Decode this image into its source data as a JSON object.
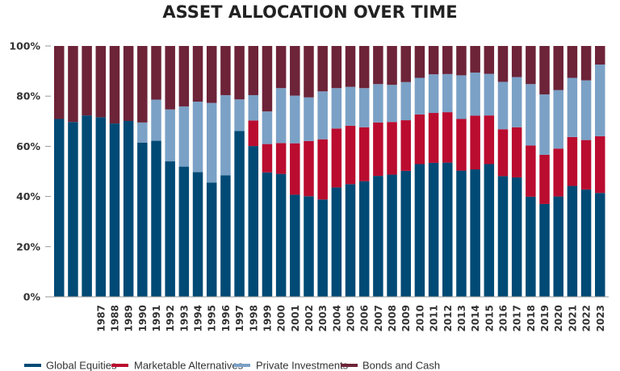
{
  "chart_data": {
    "type": "bar",
    "stacked": true,
    "title": "ASSET ALLOCATION OVER TIME",
    "xlabel": "",
    "ylabel": "",
    "ylim": [
      0,
      100
    ],
    "yticks": [
      "0%",
      "20%",
      "40%",
      "60%",
      "80%",
      "100%"
    ],
    "categories": [
      "",
      "",
      "",
      "1987",
      "1988",
      "1989",
      "1990",
      "1991",
      "1992",
      "1993",
      "1994",
      "1995",
      "1996",
      "1997",
      "1998",
      "1999",
      "2000",
      "2001",
      "2002",
      "2003",
      "2004",
      "2005",
      "2006",
      "2007",
      "2008",
      "2009",
      "2010",
      "2011",
      "2012",
      "2013",
      "2014",
      "2015",
      "2016",
      "2017",
      "2018",
      "2019",
      "2020",
      "2021",
      "2022",
      "2023"
    ],
    "series": [
      {
        "name": "Global Equities",
        "color": "#004a75",
        "values": [
          70.9,
          69.7,
          72.3,
          71.6,
          69.1,
          70.1,
          61.5,
          62.2,
          54.0,
          51.9,
          49.7,
          45.5,
          48.4,
          66.1,
          60.1,
          49.6,
          49.0,
          40.7,
          40.1,
          38.8,
          43.6,
          44.9,
          46.1,
          48.2,
          48.7,
          50.2,
          52.9,
          53.4,
          53.5,
          50.3,
          50.8,
          52.9,
          48.1,
          47.6,
          39.9,
          37.0,
          40.0,
          44.2,
          42.8,
          41.4
        ]
      },
      {
        "name": "Marketable Alternatives",
        "color": "#ba0c2f",
        "values": [
          0,
          0,
          0,
          0,
          0,
          0,
          0,
          0,
          0,
          0,
          0,
          0,
          0,
          0,
          10.2,
          11.3,
          12.3,
          20.5,
          22.0,
          24.0,
          23.5,
          23.3,
          21.5,
          21.3,
          21.0,
          20.2,
          19.8,
          19.9,
          20.1,
          20.6,
          21.4,
          19.4,
          18.7,
          20.0,
          20.4,
          19.6,
          19.1,
          19.5,
          19.7,
          22.6
        ]
      },
      {
        "name": "Private Investments",
        "color": "#7ba1c6",
        "values": [
          0,
          0,
          0,
          0,
          0,
          0,
          8.0,
          16.4,
          20.7,
          24.0,
          28.1,
          31.8,
          32.0,
          12.6,
          10.1,
          13.0,
          21.9,
          19.0,
          17.4,
          19.1,
          16.1,
          15.5,
          15.6,
          15.3,
          14.8,
          15.2,
          14.6,
          15.4,
          15.2,
          17.4,
          17.2,
          16.6,
          18.9,
          20.0,
          24.5,
          24.1,
          23.3,
          23.6,
          23.8,
          28.6
        ]
      },
      {
        "name": "Bonds and Cash",
        "color": "#6d2338",
        "values": [
          29.1,
          30.3,
          27.7,
          28.4,
          30.9,
          29.9,
          30.5,
          21.4,
          25.3,
          24.1,
          22.2,
          22.7,
          19.6,
          21.3,
          19.6,
          26.1,
          16.8,
          19.8,
          20.5,
          18.1,
          16.8,
          16.3,
          16.8,
          15.2,
          15.5,
          14.4,
          12.7,
          11.3,
          11.2,
          11.7,
          10.6,
          11.1,
          14.3,
          12.4,
          15.2,
          19.3,
          17.6,
          12.7,
          13.7,
          7.4
        ]
      }
    ],
    "legend": "bottom",
    "grid": false
  }
}
